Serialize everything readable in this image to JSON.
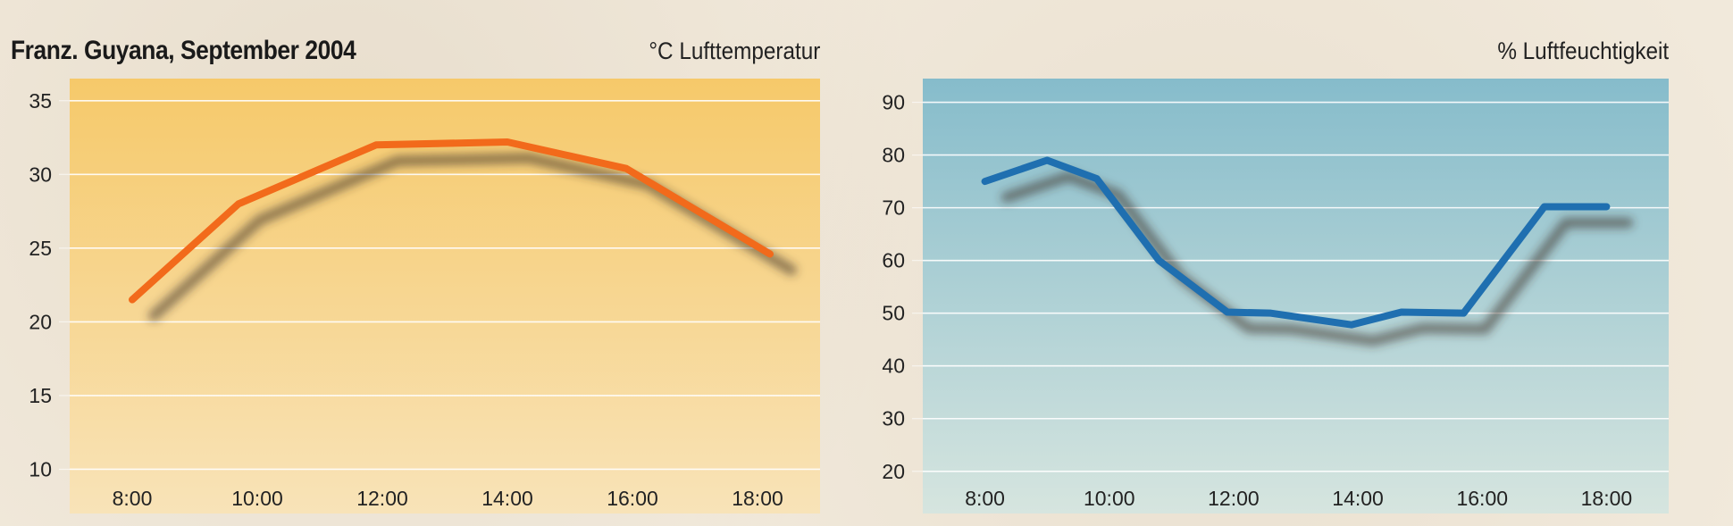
{
  "header": {
    "title": "Franz. Guyana, September 2004"
  },
  "colors": {
    "temperature_line": "#f26a1b",
    "humidity_line": "#1f6fb0",
    "temperature_bg_top": "#f6c96a",
    "temperature_bg_bottom": "#f8e3b8",
    "humidity_bg_top": "#86bccb",
    "humidity_bg_bottom": "#d6e5df"
  },
  "chart_data": [
    {
      "type": "line",
      "title": "°C  Lufttemperatur",
      "xlabel": "",
      "ylabel": "",
      "x_ticks": [
        "8:00",
        "10:00",
        "12:00",
        "14:00",
        "16:00",
        "18:00"
      ],
      "y_ticks": [
        10,
        15,
        20,
        25,
        30,
        35
      ],
      "ylim": [
        7,
        36.5
      ],
      "xlim": [
        7,
        19
      ],
      "grid": true,
      "series": [
        {
          "x": [
            8,
            9.7,
            11.9,
            14.0,
            15.9,
            18.2
          ],
          "values": [
            21.5,
            28.0,
            32.0,
            32.2,
            30.4,
            24.6
          ]
        }
      ]
    },
    {
      "type": "line",
      "title": "%  Luftfeuchtigkeit",
      "xlabel": "",
      "ylabel": "",
      "x_ticks": [
        "8:00",
        "10:00",
        "12:00",
        "14:00",
        "16:00",
        "18:00"
      ],
      "y_ticks": [
        20,
        30,
        40,
        50,
        60,
        70,
        80,
        90
      ],
      "ylim": [
        12,
        94.5
      ],
      "xlim": [
        7,
        19
      ],
      "grid": true,
      "series": [
        {
          "x": [
            8,
            9.0,
            9.8,
            10.8,
            11.9,
            12.6,
            13.9,
            14.7,
            15.7,
            17.0,
            18.0
          ],
          "values": [
            75,
            79,
            75.5,
            60,
            50.2,
            50,
            47.8,
            50.2,
            50,
            70.2,
            70.2
          ]
        }
      ]
    }
  ]
}
